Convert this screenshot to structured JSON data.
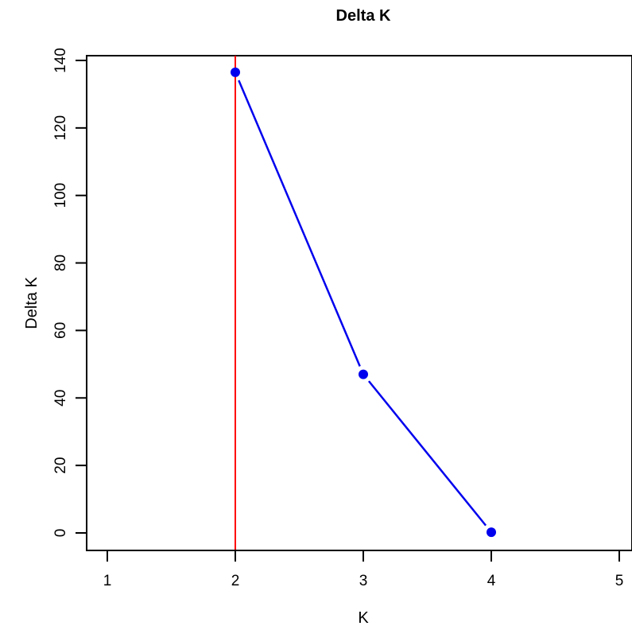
{
  "chart_data": {
    "type": "line",
    "title": "Delta K",
    "xlabel": "K",
    "ylabel": "Delta K",
    "xlim": [
      1,
      5
    ],
    "ylim": [
      0,
      140
    ],
    "x_ticks": [
      1,
      2,
      3,
      4,
      5
    ],
    "y_ticks": [
      0,
      20,
      40,
      60,
      80,
      100,
      120,
      140
    ],
    "grid": false,
    "series": [
      {
        "x": [
          2,
          3,
          4
        ],
        "y": [
          136.5,
          47,
          0.2
        ],
        "color": "#0000ee"
      }
    ],
    "reference_line": {
      "axis": "x",
      "value": 2,
      "color": "#ff0000"
    }
  }
}
